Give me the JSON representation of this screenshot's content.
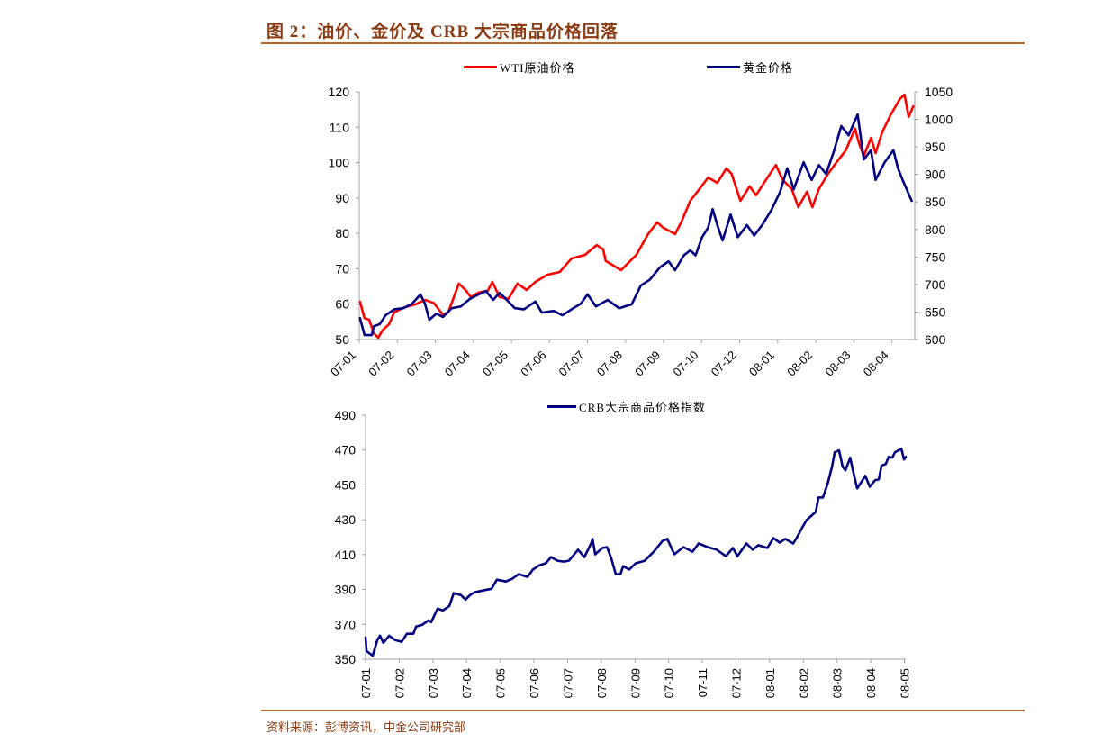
{
  "page": {
    "title": "图 2：油价、金价及 CRB 大宗商品价格回落",
    "source": "资料来源：彭博资讯，中金公司研究部",
    "accent_color": "#8B3A12"
  },
  "chart_data": [
    {
      "type": "line",
      "title": "",
      "xlabel": "",
      "legend_position": "top",
      "x_categories": [
        "07-01",
        "07-02",
        "07-03",
        "07-04",
        "07-05",
        "07-06",
        "07-07",
        "07-08",
        "07-09",
        "07-10",
        "07-12",
        "08-01",
        "08-02",
        "08-03",
        "08-04"
      ],
      "xlim": [
        0,
        14.6
      ],
      "y_left": {
        "label": "",
        "ylim": [
          50,
          120
        ],
        "ticks": [
          120,
          110,
          100,
          90,
          80,
          70,
          60,
          50
        ]
      },
      "y_right": {
        "label": "",
        "ylim": [
          600,
          1050
        ],
        "ticks": [
          1050,
          1000,
          950,
          900,
          850,
          800,
          750,
          700,
          650,
          600
        ]
      },
      "grid": false,
      "series": [
        {
          "name": "WTI原油价格",
          "axis": "left",
          "color": "#FF0000",
          "points": [
            [
              0.02,
              60.7
            ],
            [
              0.14,
              56
            ],
            [
              0.26,
              55.6
            ],
            [
              0.38,
              51.8
            ],
            [
              0.5,
              50.5
            ],
            [
              0.61,
              52.6
            ],
            [
              0.78,
              54.3
            ],
            [
              0.92,
              57.7
            ],
            [
              1.16,
              59
            ],
            [
              1.49,
              60
            ],
            [
              1.73,
              61.2
            ],
            [
              1.96,
              60.3
            ],
            [
              2.2,
              57
            ],
            [
              2.34,
              57.7
            ],
            [
              2.51,
              62.7
            ],
            [
              2.62,
              65.8
            ],
            [
              2.81,
              63.8
            ],
            [
              2.93,
              62
            ],
            [
              3.14,
              63.3
            ],
            [
              3.38,
              63.8
            ],
            [
              3.5,
              66.3
            ],
            [
              3.69,
              62
            ],
            [
              3.92,
              61.5
            ],
            [
              4.16,
              65.8
            ],
            [
              4.4,
              64
            ],
            [
              4.63,
              66.3
            ],
            [
              4.94,
              68.3
            ],
            [
              5.27,
              69.1
            ],
            [
              5.58,
              72.9
            ],
            [
              5.93,
              73.9
            ],
            [
              6.24,
              76.7
            ],
            [
              6.41,
              75.5
            ],
            [
              6.48,
              72.2
            ],
            [
              6.88,
              69.6
            ],
            [
              7.28,
              73.9
            ],
            [
              7.59,
              79.8
            ],
            [
              7.83,
              83.1
            ],
            [
              7.99,
              81.6
            ],
            [
              8.3,
              79.8
            ],
            [
              8.46,
              83.1
            ],
            [
              8.7,
              89.2
            ],
            [
              8.94,
              92.5
            ],
            [
              9.17,
              95.8
            ],
            [
              9.41,
              94.3
            ],
            [
              9.65,
              98.4
            ],
            [
              9.79,
              96.8
            ],
            [
              10.02,
              89.2
            ],
            [
              10.26,
              93.3
            ],
            [
              10.43,
              90.8
            ],
            [
              10.73,
              95.8
            ],
            [
              10.95,
              99.3
            ],
            [
              11.13,
              95.1
            ],
            [
              11.37,
              92.5
            ],
            [
              11.54,
              87.4
            ],
            [
              11.77,
              91.8
            ],
            [
              11.91,
              87.4
            ],
            [
              12.08,
              92.5
            ],
            [
              12.32,
              96.8
            ],
            [
              12.55,
              100.2
            ],
            [
              12.79,
              103.5
            ],
            [
              13.03,
              109.6
            ],
            [
              13.14,
              105.3
            ],
            [
              13.26,
              101.9
            ],
            [
              13.45,
              107
            ],
            [
              13.57,
              102.7
            ],
            [
              13.74,
              108.5
            ],
            [
              13.97,
              113.6
            ],
            [
              14.21,
              118
            ],
            [
              14.33,
              119.2
            ],
            [
              14.44,
              112.9
            ],
            [
              14.56,
              115.9
            ]
          ]
        },
        {
          "name": "黄金价格",
          "axis": "right",
          "color": "#000080",
          "points": [
            [
              0.02,
              639
            ],
            [
              0.14,
              608
            ],
            [
              0.33,
              608
            ],
            [
              0.38,
              624
            ],
            [
              0.54,
              628
            ],
            [
              0.69,
              644
            ],
            [
              0.92,
              655
            ],
            [
              1.16,
              657
            ],
            [
              1.39,
              665
            ],
            [
              1.61,
              682
            ],
            [
              1.73,
              665
            ],
            [
              1.84,
              636
            ],
            [
              2.03,
              647
            ],
            [
              2.2,
              641
            ],
            [
              2.43,
              657
            ],
            [
              2.67,
              660
            ],
            [
              2.91,
              674
            ],
            [
              3.14,
              682
            ],
            [
              3.33,
              688
            ],
            [
              3.52,
              672
            ],
            [
              3.69,
              685
            ],
            [
              3.85,
              674
            ],
            [
              4.09,
              657
            ],
            [
              4.33,
              655
            ],
            [
              4.63,
              669
            ],
            [
              4.8,
              649
            ],
            [
              5.11,
              652
            ],
            [
              5.34,
              644
            ],
            [
              5.58,
              655
            ],
            [
              5.82,
              665
            ],
            [
              6.0,
              682
            ],
            [
              6.22,
              660
            ],
            [
              6.53,
              672
            ],
            [
              6.83,
              657
            ],
            [
              7.16,
              664
            ],
            [
              7.4,
              698
            ],
            [
              7.64,
              709
            ],
            [
              7.9,
              731
            ],
            [
              8.13,
              742
            ],
            [
              8.3,
              726
            ],
            [
              8.53,
              753
            ],
            [
              8.7,
              762
            ],
            [
              8.84,
              753
            ],
            [
              9.01,
              786
            ],
            [
              9.17,
              803
            ],
            [
              9.29,
              837
            ],
            [
              9.41,
              808
            ],
            [
              9.55,
              780
            ],
            [
              9.76,
              827
            ],
            [
              9.95,
              786
            ],
            [
              10.19,
              808
            ],
            [
              10.38,
              789
            ],
            [
              10.59,
              808
            ],
            [
              10.83,
              835
            ],
            [
              11.06,
              868
            ],
            [
              11.25,
              911
            ],
            [
              11.42,
              873
            ],
            [
              11.68,
              922
            ],
            [
              11.89,
              890
            ],
            [
              12.08,
              917
            ],
            [
              12.27,
              901
            ],
            [
              12.48,
              943
            ],
            [
              12.67,
              988
            ],
            [
              12.86,
              971
            ],
            [
              13.1,
              1009
            ],
            [
              13.26,
              927
            ],
            [
              13.45,
              944
            ],
            [
              13.57,
              890
            ],
            [
              13.81,
              922
            ],
            [
              14.04,
              944
            ],
            [
              14.16,
              911
            ],
            [
              14.28,
              890
            ],
            [
              14.52,
              852
            ]
          ]
        }
      ]
    },
    {
      "type": "line",
      "title": "",
      "xlabel": "",
      "legend_position": "top",
      "x_categories": [
        "07-01",
        "07-02",
        "07-03",
        "07-04",
        "07-05",
        "07-06",
        "07-07",
        "07-08",
        "07-09",
        "07-10",
        "07-11",
        "07-12",
        "08-01",
        "08-02",
        "08-03",
        "08-04",
        "08-05"
      ],
      "xlim": [
        0,
        16.04
      ],
      "y": {
        "label": "",
        "ylim": [
          350,
          490
        ],
        "ticks": [
          490,
          470,
          450,
          430,
          410,
          390,
          370,
          350
        ]
      },
      "grid": false,
      "series": [
        {
          "name": "CRB大宗商品价格指数",
          "axis": "left",
          "color": "#000080",
          "points": [
            [
              0,
              362.5
            ],
            [
              0.03,
              354.7
            ],
            [
              0.21,
              352
            ],
            [
              0.35,
              361
            ],
            [
              0.43,
              363.5
            ],
            [
              0.53,
              359.4
            ],
            [
              0.7,
              363.5
            ],
            [
              0.88,
              361
            ],
            [
              1.07,
              360
            ],
            [
              1.23,
              364.6
            ],
            [
              1.42,
              364.6
            ],
            [
              1.5,
              368.7
            ],
            [
              1.68,
              369.7
            ],
            [
              1.87,
              372.3
            ],
            [
              1.95,
              371.3
            ],
            [
              2.14,
              379
            ],
            [
              2.3,
              378
            ],
            [
              2.49,
              380.6
            ],
            [
              2.62,
              387.9
            ],
            [
              2.83,
              386.8
            ],
            [
              2.97,
              384.2
            ],
            [
              3.1,
              386.8
            ],
            [
              3.24,
              388.4
            ],
            [
              3.48,
              389.4
            ],
            [
              3.74,
              390.4
            ],
            [
              3.9,
              395.6
            ],
            [
              4.17,
              394.6
            ],
            [
              4.36,
              396.2
            ],
            [
              4.55,
              398.8
            ],
            [
              4.81,
              397.2
            ],
            [
              4.97,
              401.4
            ],
            [
              5.16,
              403.9
            ],
            [
              5.35,
              405
            ],
            [
              5.51,
              408.6
            ],
            [
              5.7,
              406.5
            ],
            [
              5.88,
              406
            ],
            [
              6.04,
              406.5
            ],
            [
              6.31,
              412.8
            ],
            [
              6.5,
              408.6
            ],
            [
              6.71,
              416.9
            ],
            [
              6.74,
              419
            ],
            [
              6.82,
              410.2
            ],
            [
              7.03,
              413.8
            ],
            [
              7.17,
              414.3
            ],
            [
              7.3,
              407.6
            ],
            [
              7.43,
              398.8
            ],
            [
              7.57,
              398.8
            ],
            [
              7.65,
              403.4
            ],
            [
              7.83,
              401.4
            ],
            [
              8.02,
              405
            ],
            [
              8.29,
              406.5
            ],
            [
              8.56,
              411.7
            ],
            [
              8.82,
              417.9
            ],
            [
              8.96,
              419
            ],
            [
              9.17,
              410.2
            ],
            [
              9.44,
              414.3
            ],
            [
              9.71,
              411.7
            ],
            [
              9.89,
              416.4
            ],
            [
              10.16,
              414.3
            ],
            [
              10.43,
              412.8
            ],
            [
              10.7,
              409.1
            ],
            [
              10.91,
              413.8
            ],
            [
              11.04,
              409.1
            ],
            [
              11.31,
              416.4
            ],
            [
              11.5,
              412.8
            ],
            [
              11.66,
              415.4
            ],
            [
              11.93,
              413.8
            ],
            [
              12.11,
              419.5
            ],
            [
              12.3,
              416.9
            ],
            [
              12.46,
              419
            ],
            [
              12.7,
              416.4
            ],
            [
              12.83,
              420.5
            ],
            [
              12.97,
              425.7
            ],
            [
              13.1,
              429.9
            ],
            [
              13.37,
              434.5
            ],
            [
              13.45,
              442.8
            ],
            [
              13.58,
              442.8
            ],
            [
              13.72,
              450.6
            ],
            [
              13.85,
              460.4
            ],
            [
              13.93,
              468.7
            ],
            [
              14.06,
              469.8
            ],
            [
              14.17,
              460.4
            ],
            [
              14.25,
              458.4
            ],
            [
              14.39,
              465.6
            ],
            [
              14.47,
              458.4
            ],
            [
              14.6,
              448
            ],
            [
              14.84,
              455.2
            ],
            [
              14.97,
              449
            ],
            [
              15.13,
              452.7
            ],
            [
              15.24,
              453.2
            ],
            [
              15.32,
              461
            ],
            [
              15.45,
              462
            ],
            [
              15.53,
              466.1
            ],
            [
              15.64,
              465.6
            ],
            [
              15.72,
              468.7
            ],
            [
              15.91,
              470.8
            ],
            [
              15.99,
              464.6
            ],
            [
              16.04,
              466.1
            ]
          ]
        }
      ]
    }
  ]
}
